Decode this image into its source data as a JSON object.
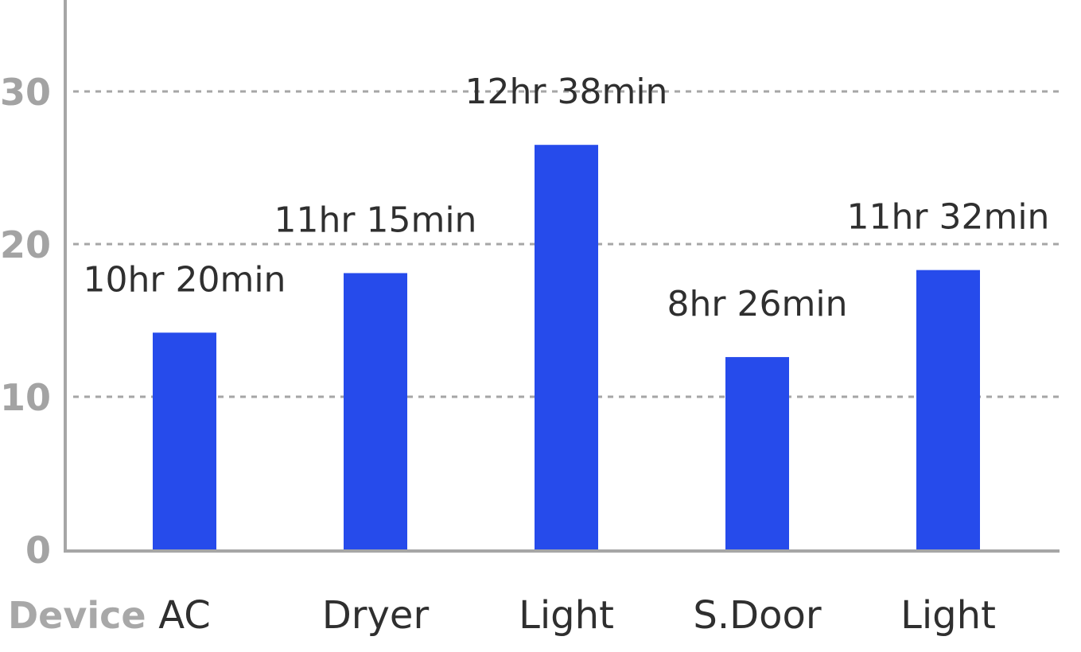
{
  "chart_data": {
    "type": "bar",
    "xlabel": "Device",
    "categories": [
      "AC",
      "Dryer",
      "Light",
      "S.Door",
      "Light"
    ],
    "values": [
      14.2,
      18.1,
      26.5,
      12.6,
      18.3
    ],
    "data_labels": [
      "10hr 20min",
      "11hr 15min",
      "12hr 38min",
      "8hr 26min",
      "11hr 32min"
    ],
    "yticks": [
      0,
      10,
      20,
      30
    ],
    "ylim": [
      0,
      35
    ],
    "grid": true,
    "bar_color": "#264beb"
  }
}
